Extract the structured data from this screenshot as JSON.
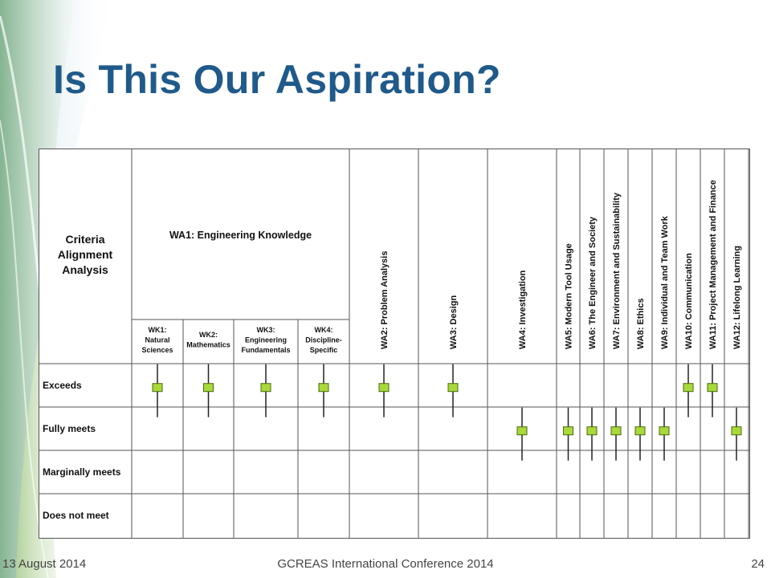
{
  "slide": {
    "title": "Is This Our Aspiration?",
    "footer_date": "13 August 2014",
    "footer_conference": "GCREAS International Conference 2014",
    "footer_page": "24"
  },
  "theme": {
    "title_color": "#1f5a8a",
    "marker_fill": "#a8d93a",
    "marker_stroke": "#4a6a10",
    "grid_color": "#555555",
    "swoosh_color": "#8cbf6a"
  },
  "chart_data": {
    "type": "table",
    "corner_label": [
      "Criteria",
      "Alignment",
      "Analysis"
    ],
    "group_header": "WA1: Engineering Knowledge",
    "sub_columns": [
      {
        "lines": [
          "WK1:",
          "Natural",
          "Sciences"
        ]
      },
      {
        "lines": [
          "WK2:",
          "Mathematics"
        ]
      },
      {
        "lines": [
          "WK3:",
          "Engineering",
          "Fundamentals"
        ]
      },
      {
        "lines": [
          "WK4:",
          "Discipline-",
          "Specific"
        ]
      }
    ],
    "rotated_columns": [
      "WA2: Problem Analysis",
      "WA3: Design",
      "WA4: Investigation",
      "WA5: Modern Tool Usage",
      "WA6: The Engineer and Society",
      "WA7: Environment and Sustainability",
      "WA8: Ethics",
      "WA9: Individual and Team Work",
      "WA10: Communication",
      "WA11: Project Management and Finance",
      "WA12: Lifelong Learning"
    ],
    "rows": [
      "Exceeds",
      "Fully meets",
      "Marginally meets",
      "Does not meet"
    ],
    "ratings": [
      {
        "column": "WK1",
        "level": "Exceeds"
      },
      {
        "column": "WK2",
        "level": "Exceeds"
      },
      {
        "column": "WK3",
        "level": "Exceeds"
      },
      {
        "column": "WK4",
        "level": "Exceeds"
      },
      {
        "column": "WA2",
        "level": "Exceeds"
      },
      {
        "column": "WA3",
        "level": "Exceeds"
      },
      {
        "column": "WA4",
        "level": "Fully meets"
      },
      {
        "column": "WA5",
        "level": "Fully meets"
      },
      {
        "column": "WA6",
        "level": "Fully meets"
      },
      {
        "column": "WA7",
        "level": "Fully meets"
      },
      {
        "column": "WA8",
        "level": "Fully meets"
      },
      {
        "column": "WA9",
        "level": "Fully meets"
      },
      {
        "column": "WA10",
        "level": "Exceeds"
      },
      {
        "column": "WA11",
        "level": "Exceeds"
      },
      {
        "column": "WA12",
        "level": "Fully meets"
      }
    ]
  }
}
